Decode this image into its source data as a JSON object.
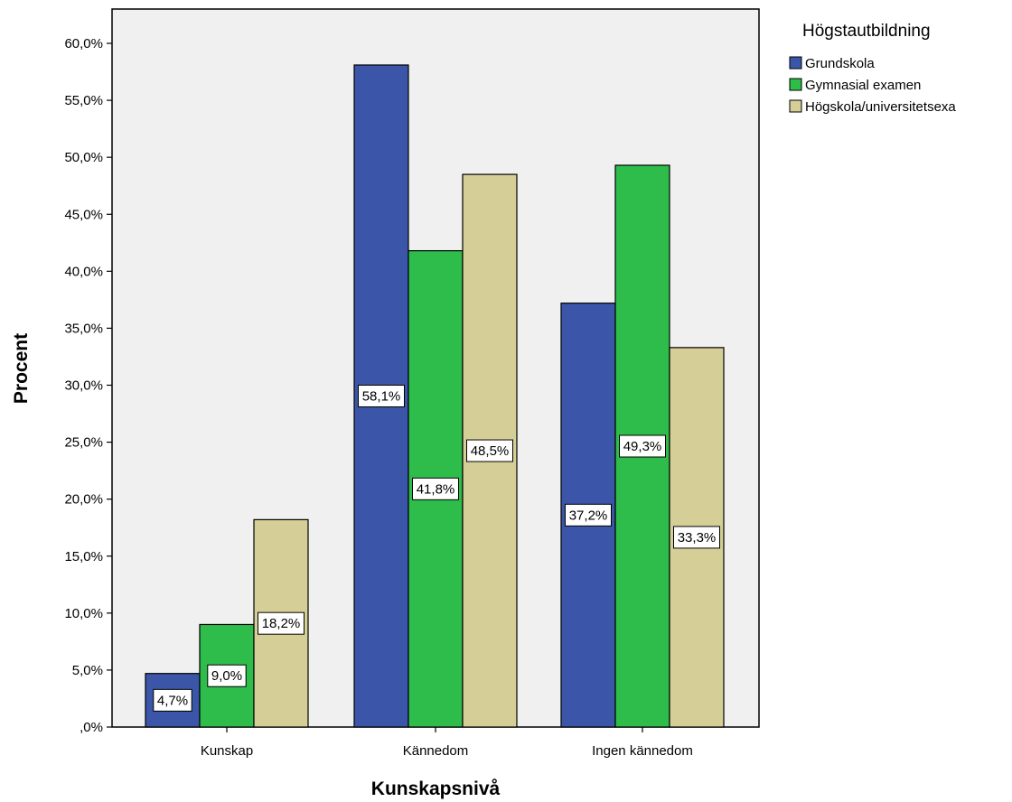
{
  "chart_data": {
    "type": "bar",
    "xlabel": "Kunskapsnivå",
    "ylabel": "Procent",
    "categories": [
      "Kunskap",
      "Kännedom",
      "Ingen kännedom"
    ],
    "ylim": [
      0,
      62
    ],
    "y_ticks": [
      0,
      5,
      10,
      15,
      20,
      25,
      30,
      35,
      40,
      45,
      50,
      55,
      60
    ],
    "y_tick_labels": [
      ",0%",
      "5,0%",
      "10,0%",
      "15,0%",
      "20,0%",
      "25,0%",
      "30,0%",
      "35,0%",
      "40,0%",
      "45,0%",
      "50,0%",
      "55,0%",
      "60,0%"
    ],
    "legend": {
      "title": "Högstautbildning",
      "position": "top-right"
    },
    "grid": false,
    "series": [
      {
        "name": "Grundskola",
        "color": "#3b56a8",
        "values": [
          4.7,
          58.1,
          37.2
        ],
        "labels": [
          "4,7%",
          "58,1%",
          "37,2%"
        ]
      },
      {
        "name": "Gymnasial examen",
        "color": "#2ebd4a",
        "values": [
          9.0,
          41.8,
          49.3
        ],
        "labels": [
          "9,0%",
          "41,8%",
          "49,3%"
        ]
      },
      {
        "name": "Högskola/universitetsexa",
        "color": "#d5cf97",
        "values": [
          18.2,
          48.5,
          33.3
        ],
        "labels": [
          "18,2%",
          "48,5%",
          "33,3%"
        ]
      }
    ]
  },
  "colors": {
    "plot_background": "#f0f0f0",
    "axis": "#000000"
  }
}
